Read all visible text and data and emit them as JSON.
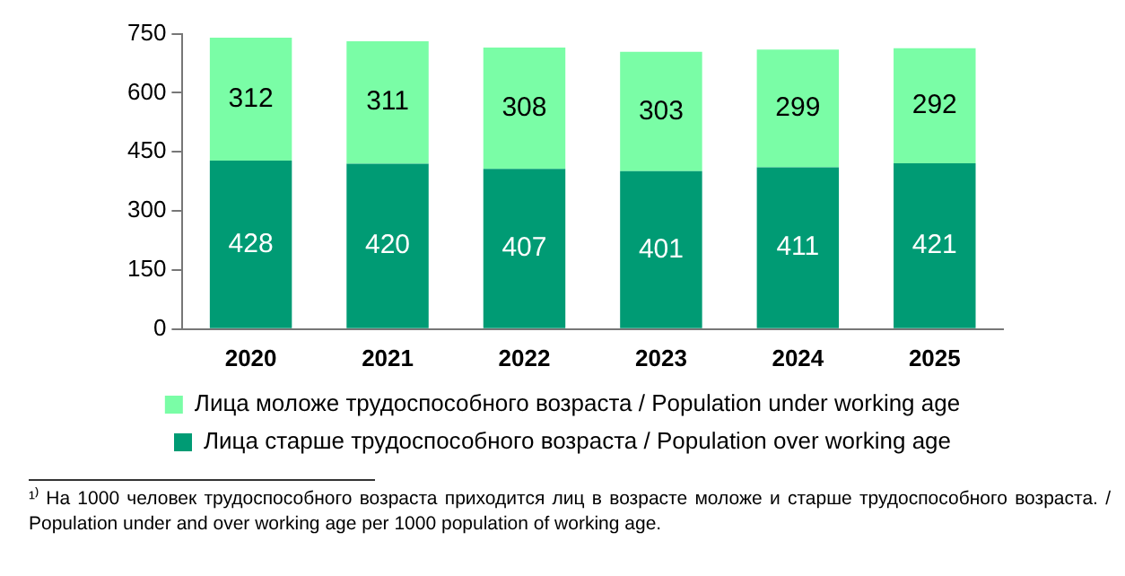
{
  "chart_data": {
    "type": "bar",
    "stacked": true,
    "categories": [
      "2020",
      "2021",
      "2022",
      "2023",
      "2024",
      "2025"
    ],
    "series": [
      {
        "name": "Лица старше трудоспособного возраста / Population over working age",
        "color": "#009b74",
        "values": [
          428,
          420,
          407,
          401,
          411,
          421
        ]
      },
      {
        "name": "Лица моложе трудоспособного возраста / Population under working age",
        "color": "#7afda6",
        "values": [
          312,
          311,
          308,
          303,
          299,
          292
        ]
      }
    ],
    "ylim": [
      0,
      750
    ],
    "yticks": [
      0,
      150,
      300,
      450,
      600,
      750
    ],
    "grid": false,
    "legend": "bottom",
    "data_labels": true,
    "annotations": [
      "¹⁾ На 1000 человек трудоспособного возраста приходится лиц в возрасте моложе и старше трудоспособного возраста. / Population under and over working age per 1000 population of working age."
    ]
  }
}
